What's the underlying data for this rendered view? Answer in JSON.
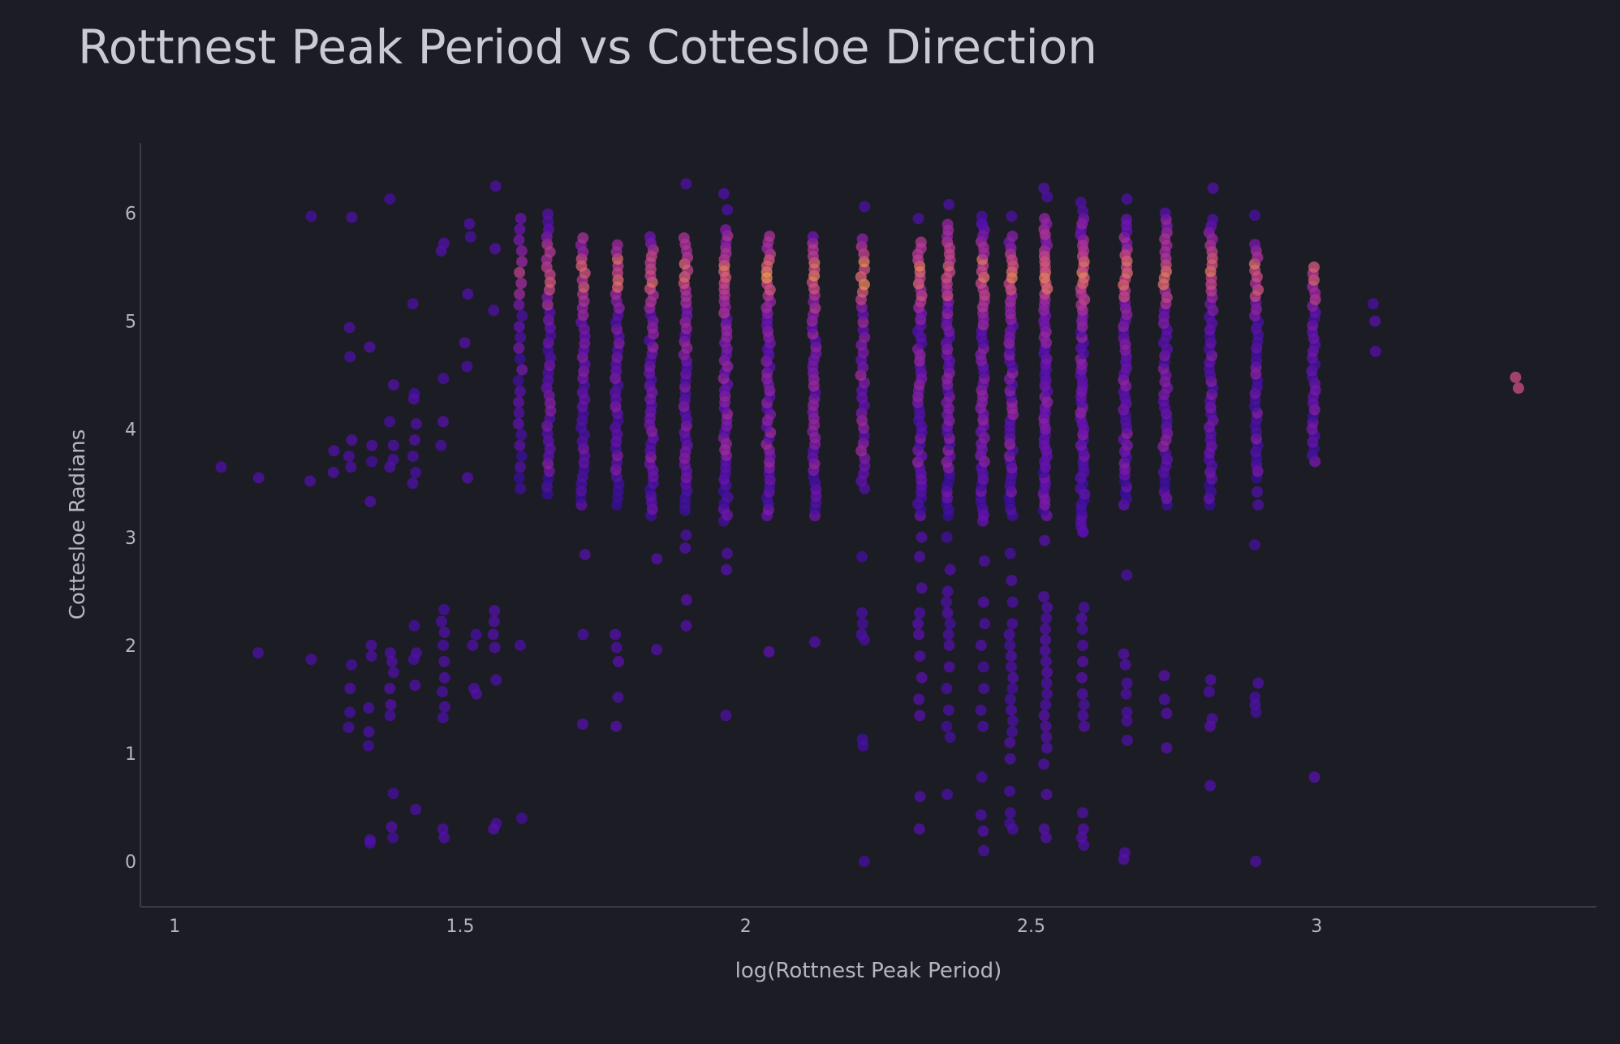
{
  "chart_data": {
    "type": "scatter",
    "title": "Rottnest Peak Period vs Cottesloe Direction",
    "xlabel": "log(Rottnest Peak Period)",
    "ylabel": "Cottesloe Radians",
    "xlim": [
      0.94,
      3.49
    ],
    "ylim": [
      -0.42,
      6.65
    ],
    "xticks": [
      1,
      1.5,
      2,
      2.5,
      3
    ],
    "yticks": [
      0,
      1,
      2,
      3,
      4,
      5,
      6
    ],
    "xtick_labels": [
      "1",
      "1.5",
      "2",
      "2.5",
      "3"
    ],
    "ytick_labels": [
      "0",
      "1",
      "2",
      "3",
      "4",
      "5",
      "6"
    ],
    "grid": false,
    "colorscale": "plasma",
    "colors": {
      "background": "#1b1c24",
      "axis_line": "#3a3b46",
      "text": "#b4b5bd",
      "title": "#c9cad2",
      "scale_low": "#3a0ea0",
      "scale_mid1": "#6a12b8",
      "scale_mid2": "#a32aa6",
      "scale_mid3": "#d65088",
      "scale_high": "#f5905c"
    },
    "columns": [
      {
        "x": 1.078,
        "ys": [
          3.65
        ],
        "heat": 0.1
      },
      {
        "x": 1.146,
        "ys": [
          3.55,
          1.93
        ],
        "heat": 0.1
      },
      {
        "x": 1.239,
        "ys": [
          5.97,
          3.52,
          1.87
        ],
        "heat": 0.1
      },
      {
        "x": 1.279,
        "ys": [
          3.8,
          3.6
        ],
        "heat": 0.12
      },
      {
        "x": 1.308,
        "ys": [
          5.96,
          4.94,
          4.67,
          3.9,
          3.75,
          3.65,
          1.82,
          1.6,
          1.38,
          1.24
        ],
        "heat": 0.12
      },
      {
        "x": 1.342,
        "ys": [
          4.76,
          3.85,
          3.7,
          3.33,
          2.0,
          1.9,
          1.42,
          1.2,
          1.07,
          0.2,
          0.17
        ],
        "heat": 0.12
      },
      {
        "x": 1.38,
        "ys": [
          6.13,
          4.41,
          4.07,
          3.85,
          3.72,
          3.65,
          1.93,
          1.85,
          1.75,
          1.6,
          1.45,
          1.35,
          0.63,
          0.32,
          0.22
        ],
        "heat": 0.12
      },
      {
        "x": 1.42,
        "ys": [
          5.16,
          4.33,
          4.28,
          4.05,
          3.9,
          3.75,
          3.6,
          3.5,
          2.18,
          1.93,
          1.87,
          1.63,
          0.48
        ],
        "heat": 0.12
      },
      {
        "x": 1.47,
        "ys": [
          5.72,
          5.65,
          4.47,
          4.07,
          3.85,
          2.33,
          2.22,
          2.12,
          2.0,
          1.85,
          1.7,
          1.57,
          1.43,
          1.33,
          0.3,
          0.22
        ],
        "heat": 0.13
      },
      {
        "x": 1.51,
        "ys": [
          5.25,
          4.8,
          4.58
        ],
        "heat": 0.13
      },
      {
        "x": 1.515,
        "ys": [
          5.9,
          5.78,
          3.55
        ],
        "heat": 0.13
      },
      {
        "x": 1.525,
        "ys": [
          2.1,
          2.0,
          1.6,
          1.55
        ],
        "heat": 0.13
      },
      {
        "x": 1.56,
        "ys": [
          6.25,
          5.67,
          5.1,
          2.32,
          2.22,
          2.1,
          1.98,
          1.68,
          0.35,
          0.3
        ],
        "heat": 0.13
      },
      {
        "x": 1.605,
        "ys": [
          2.0,
          0.4
        ],
        "heat": 0.12
      },
      {
        "x": 1.715,
        "ys": [
          2.84,
          2.1,
          1.27
        ],
        "heat": 0.15
      },
      {
        "x": 1.775,
        "ys": [
          2.1,
          1.98,
          1.85,
          1.52,
          1.25
        ],
        "heat": 0.15
      },
      {
        "x": 1.845,
        "ys": [
          2.8,
          1.96
        ],
        "heat": 0.15
      },
      {
        "x": 1.895,
        "ys": [
          6.27,
          3.02,
          2.9,
          2.42,
          2.18
        ],
        "heat": 0.15
      },
      {
        "x": 1.965,
        "ys": [
          6.18,
          6.03,
          2.85,
          2.7,
          1.35
        ],
        "heat": 0.15
      },
      {
        "x": 2.04,
        "ys": [
          1.94
        ],
        "heat": 0.2
      },
      {
        "x": 2.12,
        "ys": [
          2.03
        ],
        "heat": 0.15
      },
      {
        "x": 2.205,
        "ys": [
          6.06,
          2.82,
          2.3,
          2.2,
          2.1,
          2.05,
          1.13,
          1.07,
          0.0
        ],
        "heat": 0.1
      },
      {
        "x": 2.305,
        "ys": [
          5.95,
          3.0,
          2.82,
          2.53,
          2.3,
          2.2,
          2.1,
          1.9,
          1.7,
          1.5,
          1.35,
          0.6,
          0.3
        ],
        "heat": 0.15
      },
      {
        "x": 2.355,
        "ys": [
          6.08,
          3.0,
          2.7,
          2.5,
          2.4,
          2.3,
          2.2,
          2.1,
          2.0,
          1.8,
          1.6,
          1.4,
          1.25,
          1.15,
          0.62
        ],
        "heat": 0.12
      },
      {
        "x": 2.415,
        "ys": [
          5.97,
          5.9,
          2.78,
          2.4,
          2.2,
          2.0,
          1.8,
          1.6,
          1.4,
          1.25,
          0.78,
          0.43,
          0.28,
          0.1
        ],
        "heat": 0.12
      },
      {
        "x": 2.465,
        "ys": [
          5.97,
          2.85,
          2.6,
          2.4,
          2.2,
          2.1,
          2.0,
          1.9,
          1.8,
          1.7,
          1.6,
          1.5,
          1.4,
          1.3,
          1.2,
          1.1,
          0.95,
          0.65,
          0.45,
          0.35,
          0.3
        ],
        "heat": 0.12
      },
      {
        "x": 2.525,
        "ys": [
          6.23,
          6.15,
          2.97,
          2.45,
          2.35,
          2.25,
          2.15,
          2.05,
          1.95,
          1.85,
          1.75,
          1.65,
          1.55,
          1.45,
          1.35,
          1.25,
          1.15,
          1.05,
          0.9,
          0.62,
          0.3,
          0.22
        ],
        "heat": 0.15
      },
      {
        "x": 2.59,
        "ys": [
          6.1,
          6.02,
          3.05,
          2.35,
          2.25,
          2.15,
          2.0,
          1.85,
          1.7,
          1.55,
          1.45,
          1.35,
          1.25,
          0.45,
          0.3,
          0.22,
          0.15
        ],
        "heat": 0.15
      },
      {
        "x": 2.665,
        "ys": [
          6.13,
          2.65,
          1.92,
          1.82,
          1.65,
          1.55,
          1.38,
          1.3,
          1.12,
          0.08,
          0.02
        ],
        "heat": 0.15
      },
      {
        "x": 2.735,
        "ys": [
          1.72,
          1.5,
          1.37,
          1.05
        ],
        "heat": 0.15
      },
      {
        "x": 2.815,
        "ys": [
          6.23,
          1.68,
          1.57,
          1.32,
          1.25,
          0.7
        ],
        "heat": 0.15
      },
      {
        "x": 2.895,
        "ys": [
          5.98,
          3.42,
          3.3,
          2.93,
          1.65,
          1.52,
          1.45,
          1.38,
          0.0
        ],
        "heat": 0.12
      },
      {
        "x": 2.995,
        "ys": [
          0.78
        ],
        "heat": 0.15
      },
      {
        "x": 3.1,
        "ys": [
          5.16,
          5.0,
          4.72
        ],
        "heat": 0.15
      },
      {
        "x": 3.35,
        "ys": [
          4.48,
          4.38
        ],
        "heat": 0.72
      }
    ],
    "bands": [
      {
        "x": 1.605,
        "lo": 3.45,
        "hi": 5.95,
        "step": 0.1,
        "heat": 0.3
      },
      {
        "x": 1.655,
        "lo": 3.4,
        "hi": 6.0,
        "step": 0.07,
        "heat": 0.45
      },
      {
        "x": 1.715,
        "lo": 3.3,
        "hi": 5.8,
        "step": 0.065,
        "heat": 0.45
      },
      {
        "x": 1.775,
        "lo": 3.3,
        "hi": 5.75,
        "step": 0.065,
        "heat": 0.45
      },
      {
        "x": 1.835,
        "lo": 3.2,
        "hi": 5.8,
        "step": 0.06,
        "heat": 0.55
      },
      {
        "x": 1.895,
        "lo": 3.25,
        "hi": 5.8,
        "step": 0.06,
        "heat": 0.55
      },
      {
        "x": 1.965,
        "lo": 3.15,
        "hi": 5.85,
        "step": 0.055,
        "heat": 0.6
      },
      {
        "x": 2.04,
        "lo": 3.2,
        "hi": 5.8,
        "step": 0.055,
        "heat": 0.6
      },
      {
        "x": 2.12,
        "lo": 3.2,
        "hi": 5.78,
        "step": 0.06,
        "heat": 0.6
      },
      {
        "x": 2.205,
        "lo": 3.45,
        "hi": 5.78,
        "step": 0.07,
        "heat": 0.65
      },
      {
        "x": 2.305,
        "lo": 3.2,
        "hi": 5.75,
        "step": 0.055,
        "heat": 0.5
      },
      {
        "x": 2.355,
        "lo": 3.2,
        "hi": 5.9,
        "step": 0.055,
        "heat": 0.5
      },
      {
        "x": 2.415,
        "lo": 3.15,
        "hi": 5.95,
        "step": 0.055,
        "heat": 0.55
      },
      {
        "x": 2.465,
        "lo": 3.2,
        "hi": 5.8,
        "step": 0.055,
        "heat": 0.55
      },
      {
        "x": 2.525,
        "lo": 3.2,
        "hi": 5.95,
        "step": 0.05,
        "heat": 0.55
      },
      {
        "x": 2.59,
        "lo": 3.05,
        "hi": 5.95,
        "step": 0.05,
        "heat": 0.5
      },
      {
        "x": 2.665,
        "lo": 3.3,
        "hi": 5.95,
        "step": 0.055,
        "heat": 0.5
      },
      {
        "x": 2.735,
        "lo": 3.3,
        "hi": 6.0,
        "step": 0.06,
        "heat": 0.5
      },
      {
        "x": 2.815,
        "lo": 3.3,
        "hi": 5.95,
        "step": 0.06,
        "heat": 0.45
      },
      {
        "x": 2.895,
        "lo": 3.55,
        "hi": 5.75,
        "step": 0.06,
        "heat": 0.4
      },
      {
        "x": 2.995,
        "lo": 3.7,
        "hi": 5.55,
        "step": 0.06,
        "heat": 0.38
      }
    ]
  }
}
